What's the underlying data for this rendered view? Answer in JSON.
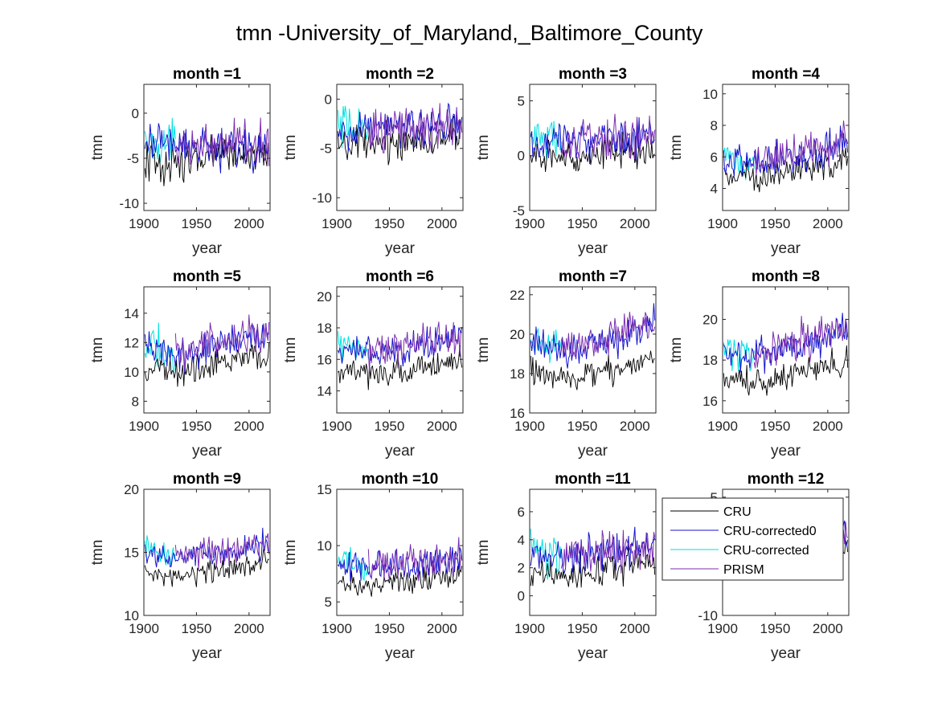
{
  "figure": {
    "title": "tmn -University_of_Maryland,_Baltimore_County"
  },
  "colors": {
    "CRU": "#000000",
    "CRU-corrected0": "#1515cc",
    "CRU-corrected": "#00e0e0",
    "PRISM": "#7a2fb0"
  },
  "legend": {
    "placement": "overlapping month =12 panel (upper-left)",
    "entries": [
      "CRU",
      "CRU-corrected0",
      "CRU-corrected",
      "PRISM"
    ]
  },
  "chart_data": [
    {
      "type": "line",
      "title": "month =1",
      "xlabel": "year",
      "ylabel": "tmn",
      "xlim": [
        1900,
        2020
      ],
      "ylim": [
        -10.8,
        3.2
      ],
      "xticks": [
        1900,
        1950,
        2000
      ],
      "yticks": [
        -10,
        -5,
        0
      ],
      "series": [
        {
          "name": "CRU",
          "x_range": [
            1901,
            2019
          ],
          "level": [
            -5.5,
            -5.6,
            -4.5,
            -4.4
          ],
          "amp": 2.4
        },
        {
          "name": "CRU-corrected0",
          "x_range": [
            1901,
            2019
          ],
          "level": [
            -3.5,
            -3.5,
            -3.8,
            -3.6
          ],
          "amp": 2.6
        },
        {
          "name": "CRU-corrected",
          "x_range": [
            1901,
            1930
          ],
          "level": [
            -3.5,
            -3.3
          ],
          "amp": 2.6
        },
        {
          "name": "PRISM",
          "x_range": [
            1930,
            2019
          ],
          "level": [
            -3.6,
            -3.4
          ],
          "amp": 2.8
        }
      ]
    },
    {
      "type": "line",
      "title": "month =2",
      "xlabel": "year",
      "ylabel": "tmn",
      "xlim": [
        1900,
        2020
      ],
      "ylim": [
        -11.3,
        1.5
      ],
      "xticks": [
        1900,
        1950,
        2000
      ],
      "yticks": [
        -10,
        -5,
        0
      ],
      "series": [
        {
          "name": "CRU",
          "x_range": [
            1901,
            2019
          ],
          "level": [
            -5.0,
            -4.6,
            -4.0,
            -3.6
          ],
          "amp": 2.0
        },
        {
          "name": "CRU-corrected0",
          "x_range": [
            1901,
            2019
          ],
          "level": [
            -3.5,
            -3.0,
            -2.8,
            -2.5
          ],
          "amp": 2.4
        },
        {
          "name": "CRU-corrected",
          "x_range": [
            1901,
            1930
          ],
          "level": [
            -3.2,
            -2.8
          ],
          "amp": 2.6
        },
        {
          "name": "PRISM",
          "x_range": [
            1930,
            2019
          ],
          "level": [
            -3.2,
            -2.6
          ],
          "amp": 2.6
        }
      ]
    },
    {
      "type": "line",
      "title": "month =3",
      "xlabel": "year",
      "ylabel": "tmn",
      "xlim": [
        1900,
        2020
      ],
      "ylim": [
        -5,
        6.5
      ],
      "xticks": [
        1900,
        1950,
        2000
      ],
      "yticks": [
        -5,
        0,
        5
      ],
      "series": [
        {
          "name": "CRU",
          "x_range": [
            1901,
            2019
          ],
          "level": [
            -0.3,
            -0.1,
            0.3,
            0.6
          ],
          "amp": 1.6
        },
        {
          "name": "CRU-corrected0",
          "x_range": [
            1901,
            2019
          ],
          "level": [
            1.2,
            1.2,
            1.4,
            1.6
          ],
          "amp": 1.8
        },
        {
          "name": "CRU-corrected",
          "x_range": [
            1901,
            1930
          ],
          "level": [
            1.8,
            1.4
          ],
          "amp": 2.2
        },
        {
          "name": "PRISM",
          "x_range": [
            1930,
            2019
          ],
          "level": [
            1.2,
            1.8
          ],
          "amp": 2.0
        }
      ]
    },
    {
      "type": "line",
      "title": "month =4",
      "xlabel": "year",
      "ylabel": "tmn",
      "xlim": [
        1900,
        2020
      ],
      "ylim": [
        2.6,
        10.6
      ],
      "xticks": [
        1900,
        1950,
        2000
      ],
      "yticks": [
        4,
        6,
        8,
        10
      ],
      "series": [
        {
          "name": "CRU",
          "x_range": [
            1901,
            2019
          ],
          "level": [
            4.8,
            4.7,
            5.2,
            5.7
          ],
          "amp": 1.0
        },
        {
          "name": "CRU-corrected0",
          "x_range": [
            1901,
            2019
          ],
          "level": [
            5.8,
            5.6,
            6.2,
            6.9
          ],
          "amp": 1.2
        },
        {
          "name": "CRU-corrected",
          "x_range": [
            1901,
            1930
          ],
          "level": [
            5.8,
            5.5
          ],
          "amp": 1.3
        },
        {
          "name": "PRISM",
          "x_range": [
            1930,
            2019
          ],
          "level": [
            5.6,
            6.9
          ],
          "amp": 1.3
        }
      ]
    },
    {
      "type": "line",
      "title": "month =5",
      "xlabel": "year",
      "ylabel": "tmn",
      "xlim": [
        1900,
        2020
      ],
      "ylim": [
        7.2,
        15.8
      ],
      "xticks": [
        1900,
        1950,
        2000
      ],
      "yticks": [
        8,
        10,
        12,
        14
      ],
      "series": [
        {
          "name": "CRU",
          "x_range": [
            1901,
            2019
          ],
          "level": [
            10.3,
            10.0,
            10.6,
            11.2
          ],
          "amp": 1.1
        },
        {
          "name": "CRU-corrected0",
          "x_range": [
            1901,
            2019
          ],
          "level": [
            11.6,
            11.3,
            11.9,
            12.6
          ],
          "amp": 1.3
        },
        {
          "name": "CRU-corrected",
          "x_range": [
            1901,
            1930
          ],
          "level": [
            11.8,
            11.2
          ],
          "amp": 1.6
        },
        {
          "name": "PRISM",
          "x_range": [
            1930,
            2019
          ],
          "level": [
            11.4,
            12.6
          ],
          "amp": 1.5
        }
      ]
    },
    {
      "type": "line",
      "title": "month =6",
      "xlabel": "year",
      "ylabel": "tmn",
      "xlim": [
        1900,
        2020
      ],
      "ylim": [
        12.6,
        20.6
      ],
      "xticks": [
        1900,
        1950,
        2000
      ],
      "yticks": [
        14,
        16,
        18,
        20
      ],
      "series": [
        {
          "name": "CRU",
          "x_range": [
            1901,
            2019
          ],
          "level": [
            15.2,
            15.0,
            15.5,
            16.0
          ],
          "amp": 0.9
        },
        {
          "name": "CRU-corrected0",
          "x_range": [
            1901,
            2019
          ],
          "level": [
            16.5,
            16.4,
            16.8,
            17.5
          ],
          "amp": 1.1
        },
        {
          "name": "CRU-corrected",
          "x_range": [
            1901,
            1930
          ],
          "level": [
            16.8,
            16.5
          ],
          "amp": 1.2
        },
        {
          "name": "PRISM",
          "x_range": [
            1930,
            2019
          ],
          "level": [
            16.5,
            17.5
          ],
          "amp": 1.2
        }
      ]
    },
    {
      "type": "line",
      "title": "month =7",
      "xlabel": "year",
      "ylabel": "tmn",
      "xlim": [
        1900,
        2020
      ],
      "ylim": [
        16,
        22.4
      ],
      "xticks": [
        1900,
        1950,
        2000
      ],
      "yticks": [
        16,
        18,
        20,
        22
      ],
      "series": [
        {
          "name": "CRU",
          "x_range": [
            1901,
            2019
          ],
          "level": [
            18.0,
            17.8,
            18.2,
            18.8
          ],
          "amp": 0.8
        },
        {
          "name": "CRU-corrected0",
          "x_range": [
            1901,
            2019
          ],
          "level": [
            19.4,
            19.2,
            19.6,
            20.6
          ],
          "amp": 0.9
        },
        {
          "name": "CRU-corrected",
          "x_range": [
            1901,
            1930
          ],
          "level": [
            19.6,
            19.3
          ],
          "amp": 1.0
        },
        {
          "name": "PRISM",
          "x_range": [
            1930,
            2019
          ],
          "level": [
            19.3,
            20.5
          ],
          "amp": 1.0
        }
      ]
    },
    {
      "type": "line",
      "title": "month =8",
      "xlabel": "year",
      "ylabel": "tmn",
      "xlim": [
        1900,
        2020
      ],
      "ylim": [
        15.4,
        21.6
      ],
      "xticks": [
        1900,
        1950,
        2000
      ],
      "yticks": [
        16,
        18,
        20
      ],
      "series": [
        {
          "name": "CRU",
          "x_range": [
            1901,
            2019
          ],
          "level": [
            17.0,
            16.9,
            17.4,
            18.0
          ],
          "amp": 0.8
        },
        {
          "name": "CRU-corrected0",
          "x_range": [
            1901,
            2019
          ],
          "level": [
            18.3,
            18.2,
            18.6,
            19.6
          ],
          "amp": 0.9
        },
        {
          "name": "CRU-corrected",
          "x_range": [
            1901,
            1930
          ],
          "level": [
            18.5,
            18.2
          ],
          "amp": 1.0
        },
        {
          "name": "PRISM",
          "x_range": [
            1930,
            2019
          ],
          "level": [
            18.2,
            19.6
          ],
          "amp": 1.0
        }
      ]
    },
    {
      "type": "line",
      "title": "month =9",
      "xlabel": "year",
      "ylabel": "tmn",
      "xlim": [
        1900,
        2020
      ],
      "ylim": [
        10,
        20
      ],
      "xticks": [
        1900,
        1950,
        2000
      ],
      "yticks": [
        10,
        15,
        20
      ],
      "series": [
        {
          "name": "CRU",
          "x_range": [
            1901,
            2019
          ],
          "level": [
            13.3,
            13.1,
            13.6,
            14.4
          ],
          "amp": 1.0
        },
        {
          "name": "CRU-corrected0",
          "x_range": [
            1901,
            2019
          ],
          "level": [
            14.8,
            14.6,
            14.9,
            15.8
          ],
          "amp": 1.1
        },
        {
          "name": "CRU-corrected",
          "x_range": [
            1901,
            1930
          ],
          "level": [
            15.2,
            14.7
          ],
          "amp": 1.2
        },
        {
          "name": "PRISM",
          "x_range": [
            1930,
            2019
          ],
          "level": [
            14.6,
            15.8
          ],
          "amp": 1.2
        }
      ]
    },
    {
      "type": "line",
      "title": "month =10",
      "xlabel": "year",
      "ylabel": "tmn",
      "xlim": [
        1900,
        2020
      ],
      "ylim": [
        3.8,
        15
      ],
      "xticks": [
        1900,
        1950,
        2000
      ],
      "yticks": [
        5,
        10,
        15
      ],
      "series": [
        {
          "name": "CRU",
          "x_range": [
            1901,
            2019
          ],
          "level": [
            6.6,
            6.5,
            6.9,
            7.5
          ],
          "amp": 1.3
        },
        {
          "name": "CRU-corrected0",
          "x_range": [
            1901,
            2019
          ],
          "level": [
            8.2,
            8.0,
            8.3,
            9.0
          ],
          "amp": 1.5
        },
        {
          "name": "CRU-corrected",
          "x_range": [
            1901,
            1930
          ],
          "level": [
            8.6,
            8.1
          ],
          "amp": 1.6
        },
        {
          "name": "PRISM",
          "x_range": [
            1930,
            2019
          ],
          "level": [
            8.0,
            9.0
          ],
          "amp": 1.6
        }
      ]
    },
    {
      "type": "line",
      "title": "month =11",
      "xlabel": "year",
      "ylabel": "tmn",
      "xlim": [
        1900,
        2020
      ],
      "ylim": [
        -1.4,
        7.6
      ],
      "xticks": [
        1900,
        1950,
        2000
      ],
      "yticks": [
        0,
        2,
        4,
        6
      ],
      "series": [
        {
          "name": "CRU",
          "x_range": [
            1901,
            2019
          ],
          "level": [
            1.6,
            1.5,
            2.0,
            2.5
          ],
          "amp": 1.3
        },
        {
          "name": "CRU-corrected0",
          "x_range": [
            1901,
            2019
          ],
          "level": [
            3.0,
            2.8,
            3.2,
            3.6
          ],
          "amp": 1.4
        },
        {
          "name": "CRU-corrected",
          "x_range": [
            1901,
            1930
          ],
          "level": [
            3.2,
            2.8
          ],
          "amp": 1.5
        },
        {
          "name": "PRISM",
          "x_range": [
            1930,
            2019
          ],
          "level": [
            2.8,
            3.6
          ],
          "amp": 1.6
        }
      ]
    },
    {
      "type": "line",
      "title": "month =12",
      "xlabel": "year",
      "ylabel": "tmn",
      "xlim": [
        1900,
        2020
      ],
      "ylim": [
        -10,
        6
      ],
      "xticks": [
        1900,
        1950,
        2000
      ],
      "yticks": [
        -10,
        5
      ],
      "series": [
        {
          "name": "CRU",
          "x_range": [
            1901,
            2019
          ],
          "level": [
            -2.5,
            -2.2,
            -1.8,
            -1.4
          ],
          "amp": 2.2
        },
        {
          "name": "CRU-corrected0",
          "x_range": [
            1901,
            2019
          ],
          "level": [
            -1.0,
            -0.8,
            -0.6,
            -0.2
          ],
          "amp": 2.4
        },
        {
          "name": "CRU-corrected",
          "x_range": [
            1901,
            1930
          ],
          "level": [
            -0.8,
            -0.6
          ],
          "amp": 2.6
        },
        {
          "name": "PRISM",
          "x_range": [
            1930,
            2019
          ],
          "level": [
            -0.9,
            -0.3
          ],
          "amp": 2.6
        }
      ]
    }
  ]
}
